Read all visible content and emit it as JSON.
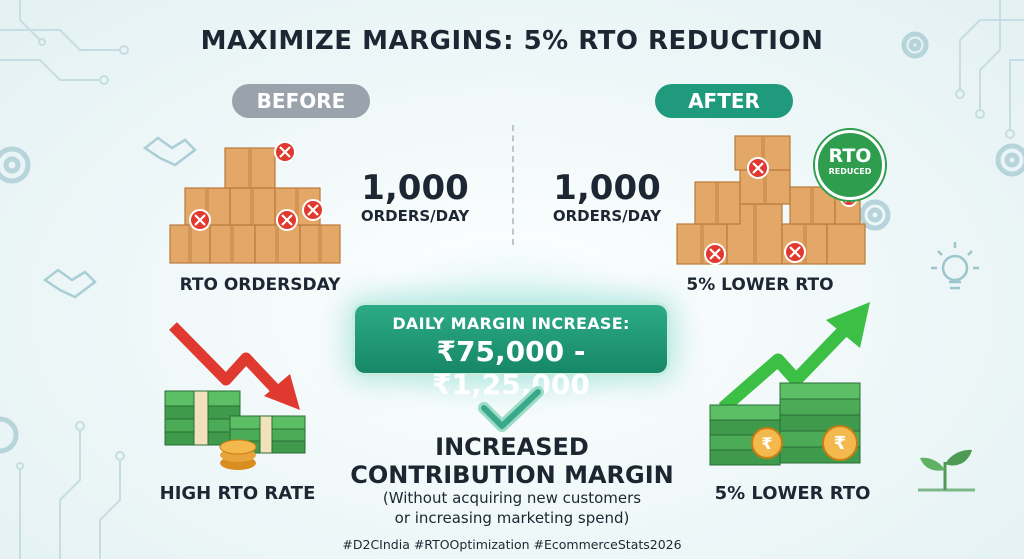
{
  "title": "MAXIMIZE MARGINS: 5% RTO REDUCTION",
  "before": {
    "pill": "BEFORE",
    "orders_number": "1,000",
    "orders_unit": "ORDERS/DAY",
    "boxes_label": "RTO ORDERSDAY",
    "bottom_label": "HIGH RTO RATE"
  },
  "after": {
    "pill": "AFTER",
    "orders_number": "1,000",
    "orders_unit": "ORDERS/DAY",
    "badge_main": "RTO",
    "badge_sub": "REDUCED",
    "boxes_label": "5% LOWER RTO",
    "bottom_label": "5% LOWER RTO"
  },
  "margin": {
    "heading": "DAILY MARGIN INCREASE:",
    "value": "₹75,000 - ₹1,25,000"
  },
  "result": {
    "line1": "INCREASED",
    "line2": "CONTRIBUTION MARGIN",
    "note1": "(Without acquiring new customers",
    "note2": "or increasing marketing spend)"
  },
  "hashtags": "#D2CIndia #RTOOptimization #EcommerceStats2026",
  "colors": {
    "accent": "#1f9a7c",
    "before_pill": "#9aa3ab",
    "down_arrow": "#e0392f",
    "up_arrow": "#3bbf45",
    "box": "#e3a867",
    "cash": "#3f9a4b"
  },
  "icons": [
    "handshake-icon",
    "gear-icon",
    "lightbulb-icon",
    "sprout-icon",
    "circuit-icon",
    "checkmark-icon",
    "rupee-coin-icon"
  ]
}
